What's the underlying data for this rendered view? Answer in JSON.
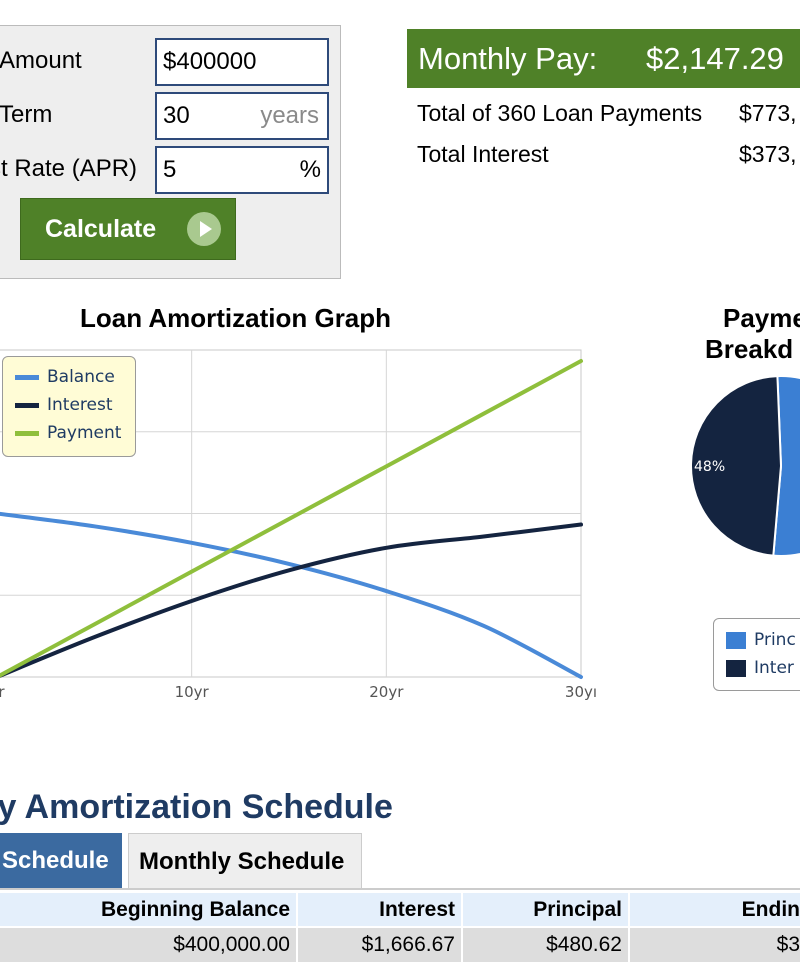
{
  "form": {
    "amount_label": "Amount",
    "amount_value": "$400000",
    "term_label": "Term",
    "term_value": "30",
    "term_unit": "years",
    "rate_label": "st Rate (APR)",
    "rate_value": "5",
    "rate_unit": "%",
    "calculate_label": "Calculate"
  },
  "results": {
    "monthly_label": "Monthly Pay:",
    "monthly_value": "$2,147.29",
    "total_payments_label": "Total of 360 Loan Payments",
    "total_payments_value": "$773,",
    "total_interest_label": "Total Interest",
    "total_interest_value": "$373,"
  },
  "graph": {
    "title": "Loan Amortization Graph",
    "legend": [
      "Balance",
      "Interest",
      "Payment"
    ]
  },
  "chart_data": [
    {
      "type": "line",
      "title": "Loan Amortization Graph",
      "x": [
        0,
        5,
        10,
        15,
        20,
        25,
        30
      ],
      "x_tick_labels": [
        "yr",
        "10yr",
        "20yr",
        "30yı"
      ],
      "x_ticks": [
        0,
        10,
        20,
        30
      ],
      "xlim": [
        0,
        30
      ],
      "ylim": [
        0,
        800000
      ],
      "grid": true,
      "legend_position": "top-left",
      "series": [
        {
          "name": "Balance",
          "color": "#4a8ad8",
          "values": [
            400000,
            368609,
            328328,
            276630,
            210290,
            125155,
            0
          ]
        },
        {
          "name": "Interest",
          "color": "#142440",
          "values": [
            0,
            97436,
            185987,
            261125,
            316126,
            343836,
            373023
          ]
        },
        {
          "name": "Payment",
          "color": "#8fbf3c",
          "values": [
            0,
            128837,
            257675,
            386512,
            515350,
            644187,
            773023
          ]
        }
      ]
    },
    {
      "type": "pie",
      "title": "Payme Breakd",
      "labels": [
        "Princ",
        "Inter"
      ],
      "values": [
        52,
        48
      ],
      "slice_labels": [
        "",
        "48%"
      ],
      "colors": [
        "#3b7fd3",
        "#142440"
      ]
    }
  ],
  "pie": {
    "title_line1": "Payme",
    "title_line2": "Breakd",
    "slice_label": "48%",
    "legend": [
      "Princ",
      "Inter"
    ]
  },
  "schedule": {
    "title": "ly Amortization Schedule",
    "tabs": [
      "Schedule",
      "Monthly Schedule"
    ],
    "headers": [
      "Beginning Balance",
      "Interest",
      "Principal",
      "Endin"
    ],
    "rows": [
      [
        "$400,000.00",
        "$1,666.67",
        "$480.62",
        "$3"
      ]
    ]
  },
  "colors": {
    "accent_green": "#4f8128",
    "schedule_blue": "#3b6aa0",
    "title_navy": "#1f3b63"
  }
}
